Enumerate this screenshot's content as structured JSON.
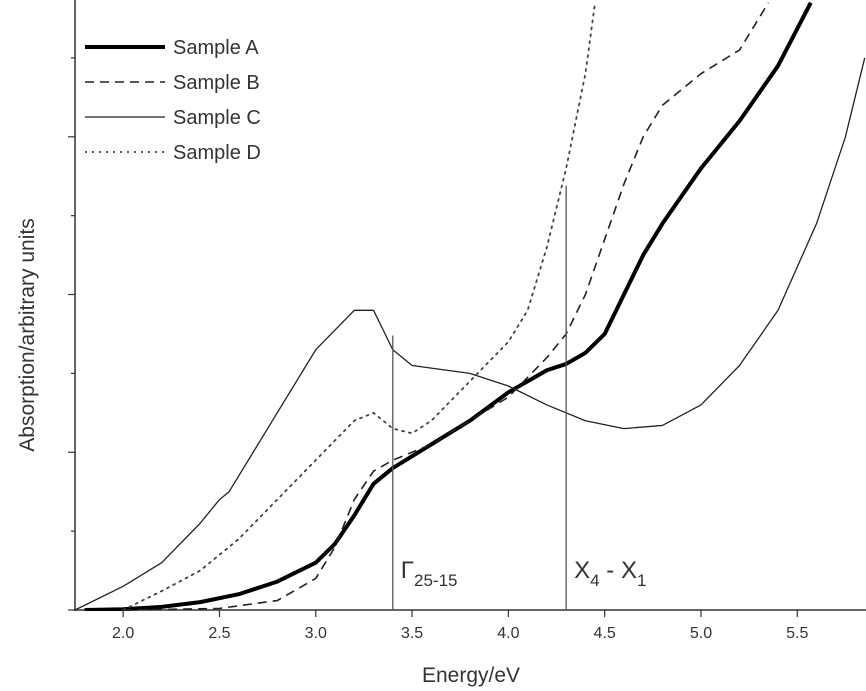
{
  "chart_data": {
    "type": "line",
    "x_label": "Energy/eV",
    "y_label": "Absorption/arbitrary units",
    "xlim": [
      1.75,
      5.85
    ],
    "ylim": [
      0,
      3.85
    ],
    "xticks": [
      {
        "value": 2.0,
        "label": "2.0"
      },
      {
        "value": 2.5,
        "label": "2.5"
      },
      {
        "value": 3.0,
        "label": "3.0"
      },
      {
        "value": 3.5,
        "label": "3.5"
      },
      {
        "value": 4.0,
        "label": "4.0"
      },
      {
        "value": 4.5,
        "label": "4.5"
      },
      {
        "value": 5.0,
        "label": "5.0"
      },
      {
        "value": 5.5,
        "label": "5.5"
      }
    ],
    "yticks": [
      0,
      0.5,
      1,
      1.5,
      2,
      2.5,
      3,
      3.5
    ],
    "legend": "upper left",
    "series": [
      {
        "name": "Sample A",
        "color": "#000000",
        "line_width": 4,
        "dash": "solid",
        "x": [
          1.8,
          2.0,
          2.2,
          2.4,
          2.6,
          2.8,
          3.0,
          3.1,
          3.2,
          3.3,
          3.4,
          3.6,
          3.8,
          4.0,
          4.2,
          4.3,
          4.4,
          4.5,
          4.6,
          4.7,
          4.8,
          5.0,
          5.2,
          5.4,
          5.57
        ],
        "values": [
          0,
          0.005,
          0.02,
          0.05,
          0.1,
          0.18,
          0.3,
          0.42,
          0.6,
          0.8,
          0.9,
          1.05,
          1.2,
          1.38,
          1.52,
          1.56,
          1.63,
          1.75,
          2.0,
          2.25,
          2.45,
          2.8,
          3.1,
          3.45,
          3.85
        ]
      },
      {
        "name": "Sample B",
        "color": "#222222",
        "line_width": 1.6,
        "dash": "dashed",
        "x": [
          2.0,
          2.5,
          2.8,
          3.0,
          3.1,
          3.2,
          3.3,
          3.4,
          3.6,
          3.8,
          4.0,
          4.2,
          4.3,
          4.4,
          4.5,
          4.6,
          4.7,
          4.8,
          5.0,
          5.2,
          5.35
        ],
        "values": [
          0,
          0.01,
          0.06,
          0.2,
          0.4,
          0.7,
          0.88,
          0.95,
          1.05,
          1.2,
          1.35,
          1.6,
          1.75,
          2.0,
          2.35,
          2.7,
          3.0,
          3.2,
          3.4,
          3.55,
          3.85
        ]
      },
      {
        "name": "Sample C",
        "color": "#222222",
        "line_width": 1.3,
        "dash": "solid",
        "x": [
          1.75,
          2.0,
          2.2,
          2.4,
          2.5,
          2.55,
          2.6,
          2.8,
          3.0,
          3.2,
          3.3,
          3.4,
          3.5,
          3.8,
          4.0,
          4.2,
          4.4,
          4.6,
          4.8,
          5.0,
          5.2,
          5.4,
          5.6,
          5.75,
          5.85
        ],
        "values": [
          0,
          0.15,
          0.3,
          0.55,
          0.7,
          0.75,
          0.85,
          1.25,
          1.65,
          1.9,
          1.9,
          1.65,
          1.55,
          1.5,
          1.42,
          1.3,
          1.2,
          1.15,
          1.17,
          1.3,
          1.55,
          1.9,
          2.45,
          3.0,
          3.5
        ]
      },
      {
        "name": "Sample D",
        "color": "#444444",
        "line_width": 1.8,
        "dash": "dotted",
        "x": [
          2.0,
          2.2,
          2.4,
          2.6,
          2.8,
          3.0,
          3.2,
          3.3,
          3.4,
          3.5,
          3.6,
          3.8,
          4.0,
          4.1,
          4.2,
          4.3,
          4.4,
          4.45
        ],
        "values": [
          0,
          0.12,
          0.25,
          0.45,
          0.7,
          0.95,
          1.2,
          1.25,
          1.15,
          1.12,
          1.2,
          1.45,
          1.7,
          1.9,
          2.3,
          2.8,
          3.4,
          3.85
        ]
      }
    ],
    "annotations": [
      {
        "x": 3.4,
        "top": 1.74,
        "parts": [
          {
            "text": "Γ"
          },
          {
            "text": "25-15",
            "sub": true
          }
        ]
      },
      {
        "x": 4.3,
        "top": 2.69,
        "parts": [
          {
            "text": "X"
          },
          {
            "text": "4",
            "sub": true
          },
          {
            "text": " - X"
          },
          {
            "text": "1",
            "sub": true
          }
        ]
      }
    ]
  }
}
